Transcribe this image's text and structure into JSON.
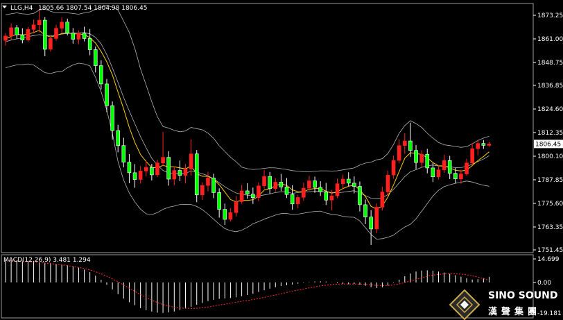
{
  "header": {
    "symbol": "LLG,H4",
    "ohlc": "1805.66 1807.54 1804.98 1806.45"
  },
  "macd": {
    "label": "MACD(12,26,9) 3.481 1.294",
    "ticks": [
      "14.699",
      "0.00",
      "-19.181"
    ]
  },
  "logo": {
    "brand": "SINO SOUND",
    "brand_cn": "漢聲集團"
  },
  "colors": {
    "up": "#ff2020",
    "down": "#ffffff",
    "up_body": "#ff2020",
    "down_body": "#00ff00",
    "band": "#b4b4b4",
    "ma": "#ffd000",
    "signal": "#ff3030",
    "hist": "#ffffff"
  },
  "chart_data": [
    {
      "type": "candlestick",
      "title": "LLG,H4",
      "yticks": [
        "1873.25",
        "1861.00",
        "1848.75",
        "1836.85",
        "1824.60",
        "1812.35",
        "1800.10",
        "1787.85",
        "1775.60",
        "1763.35",
        "1751.45"
      ],
      "ylim": [
        1751.45,
        1873.25
      ],
      "current_price": "1806.45",
      "candles": [
        [
          1860.2,
          1864.0,
          1857.5,
          1862.5
        ],
        [
          1862.5,
          1869.0,
          1860.5,
          1866.8
        ],
        [
          1866.8,
          1868.2,
          1861.0,
          1863.1
        ],
        [
          1863.1,
          1866.5,
          1858.7,
          1860.4
        ],
        [
          1860.4,
          1867.2,
          1859.5,
          1865.9
        ],
        [
          1865.9,
          1871.0,
          1863.8,
          1868.3
        ],
        [
          1868.3,
          1876.0,
          1864.4,
          1870.7
        ],
        [
          1870.7,
          1872.3,
          1852.0,
          1855.6
        ],
        [
          1855.6,
          1862.8,
          1854.4,
          1861.2
        ],
        [
          1861.2,
          1868.4,
          1860.0,
          1866.5
        ],
        [
          1866.5,
          1872.1,
          1864.1,
          1869.7
        ],
        [
          1869.7,
          1871.5,
          1862.8,
          1864.0
        ],
        [
          1864.0,
          1866.6,
          1858.5,
          1860.8
        ],
        [
          1860.8,
          1865.4,
          1858.2,
          1863.9
        ],
        [
          1863.9,
          1867.3,
          1859.7,
          1861.2
        ],
        [
          1861.2,
          1866.1,
          1852.5,
          1855.4
        ],
        [
          1855.4,
          1857.0,
          1843.6,
          1847.1
        ],
        [
          1847.1,
          1849.9,
          1834.8,
          1837.6
        ],
        [
          1837.6,
          1840.2,
          1822.9,
          1826.3
        ],
        [
          1826.3,
          1828.5,
          1808.7,
          1813.4
        ],
        [
          1813.4,
          1816.4,
          1802.1,
          1805.6
        ],
        [
          1805.6,
          1809.7,
          1794.3,
          1797.0
        ],
        [
          1797.0,
          1801.2,
          1786.1,
          1791.5
        ],
        [
          1791.5,
          1796.0,
          1783.7,
          1788.0
        ],
        [
          1788.0,
          1795.0,
          1785.8,
          1792.4
        ],
        [
          1792.4,
          1797.7,
          1789.6,
          1794.3
        ],
        [
          1794.3,
          1796.1,
          1787.5,
          1790.4
        ],
        [
          1790.4,
          1798.3,
          1789.3,
          1796.6
        ],
        [
          1796.6,
          1812.7,
          1795.0,
          1799.5
        ],
        [
          1799.5,
          1802.7,
          1784.8,
          1788.2
        ],
        [
          1788.2,
          1794.7,
          1785.0,
          1792.7
        ],
        [
          1792.7,
          1797.8,
          1787.1,
          1790.1
        ],
        [
          1790.1,
          1796.0,
          1785.9,
          1793.5
        ],
        [
          1793.5,
          1808.8,
          1790.0,
          1801.3
        ],
        [
          1801.3,
          1803.3,
          1776.2,
          1780.0
        ],
        [
          1780.0,
          1786.5,
          1777.4,
          1784.9
        ],
        [
          1784.9,
          1792.0,
          1781.9,
          1788.8
        ],
        [
          1788.8,
          1791.0,
          1778.3,
          1781.2
        ],
        [
          1781.2,
          1783.4,
          1768.2,
          1772.5
        ],
        [
          1772.5,
          1775.5,
          1764.4,
          1767.3
        ],
        [
          1767.3,
          1773.2,
          1766.2,
          1770.8
        ],
        [
          1770.8,
          1779.5,
          1768.8,
          1776.5
        ],
        [
          1776.5,
          1785.2,
          1775.4,
          1782.1
        ],
        [
          1782.1,
          1786.1,
          1778.0,
          1780.4
        ],
        [
          1780.4,
          1783.8,
          1775.3,
          1778.6
        ],
        [
          1778.6,
          1786.6,
          1776.7,
          1784.7
        ],
        [
          1784.7,
          1793.0,
          1783.3,
          1789.6
        ],
        [
          1789.6,
          1791.9,
          1780.4,
          1783.3
        ],
        [
          1783.3,
          1788.7,
          1781.7,
          1786.6
        ],
        [
          1786.6,
          1790.9,
          1782.0,
          1784.1
        ],
        [
          1784.1,
          1788.8,
          1778.4,
          1780.2
        ],
        [
          1780.2,
          1785.0,
          1772.3,
          1775.3
        ],
        [
          1775.3,
          1780.0,
          1773.1,
          1778.7
        ],
        [
          1778.7,
          1786.4,
          1777.0,
          1783.5
        ],
        [
          1783.5,
          1789.9,
          1782.2,
          1787.3
        ],
        [
          1787.3,
          1789.5,
          1781.1,
          1783.9
        ],
        [
          1783.9,
          1787.1,
          1779.5,
          1781.6
        ],
        [
          1781.6,
          1786.2,
          1774.7,
          1777.3
        ],
        [
          1777.3,
          1782.6,
          1772.0,
          1779.5
        ],
        [
          1779.5,
          1788.5,
          1778.3,
          1785.8
        ],
        [
          1785.8,
          1790.5,
          1783.3,
          1788.2
        ],
        [
          1788.2,
          1791.7,
          1784.4,
          1786.1
        ],
        [
          1786.1,
          1789.6,
          1780.8,
          1784.4
        ],
        [
          1784.4,
          1787.0,
          1771.4,
          1774.9
        ],
        [
          1774.9,
          1777.6,
          1764.8,
          1768.5
        ],
        [
          1768.5,
          1772.0,
          1754.0,
          1762.3
        ],
        [
          1762.3,
          1775.6,
          1760.1,
          1773.6
        ],
        [
          1773.6,
          1784.2,
          1771.9,
          1781.5
        ],
        [
          1781.5,
          1792.6,
          1779.5,
          1790.3
        ],
        [
          1790.3,
          1800.4,
          1788.4,
          1797.9
        ],
        [
          1797.9,
          1808.7,
          1796.4,
          1805.6
        ],
        [
          1805.6,
          1812.1,
          1801.3,
          1808.0
        ],
        [
          1808.0,
          1817.5,
          1799.7,
          1803.1
        ],
        [
          1803.1,
          1805.9,
          1793.4,
          1796.8
        ],
        [
          1796.8,
          1803.2,
          1794.2,
          1801.1
        ],
        [
          1801.1,
          1803.9,
          1791.2,
          1794.0
        ],
        [
          1794.0,
          1796.5,
          1786.7,
          1789.4
        ],
        [
          1789.4,
          1795.4,
          1788.0,
          1793.0
        ],
        [
          1793.0,
          1800.9,
          1791.5,
          1797.8
        ],
        [
          1797.8,
          1800.3,
          1788.2,
          1791.2
        ],
        [
          1791.2,
          1794.0,
          1786.0,
          1788.3
        ],
        [
          1788.3,
          1793.1,
          1785.8,
          1790.9
        ],
        [
          1790.9,
          1798.8,
          1789.9,
          1796.6
        ],
        [
          1796.6,
          1806.9,
          1795.3,
          1804.0
        ],
        [
          1804.0,
          1808.5,
          1800.4,
          1806.7
        ],
        [
          1806.7,
          1808.5,
          1803.9,
          1805.7
        ],
        [
          1805.7,
          1807.54,
          1804.98,
          1806.45
        ]
      ],
      "bollinger_upper": [
        1873.5,
        1874.0,
        1874.5,
        1874.0,
        1873.8,
        1874.2,
        1876.0,
        1876.5,
        1875.3,
        1874.5,
        1874.5,
        1874.5,
        1874.2,
        1873.8,
        1874.5,
        1875.0,
        1876.3,
        1877.5,
        1878.4,
        1877.5,
        1875.9,
        1870.2,
        1864.4,
        1856.0,
        1845.5,
        1837.0,
        1828.3,
        1820.6,
        1815.5,
        1814.7,
        1813.5,
        1812.8,
        1813.2,
        1815.0,
        1814.4,
        1813.8,
        1812.1,
        1809.4,
        1805.5,
        1802.6,
        1799.6,
        1797.2,
        1794.4,
        1793.6,
        1793.2,
        1793.4,
        1793.8,
        1794.1,
        1794.0,
        1793.6,
        1793.2,
        1792.6,
        1792.3,
        1792.1,
        1792.0,
        1792.3,
        1792.5,
        1792.5,
        1792.4,
        1792.5,
        1793.0,
        1793.5,
        1794.0,
        1795.5,
        1796.5,
        1797.0,
        1798.2,
        1798.8,
        1801.5,
        1806.2,
        1812.0,
        1816.0,
        1818.5,
        1817.0,
        1815.0,
        1812.0,
        1809.5,
        1807.2,
        1806.0,
        1805.6,
        1805.1,
        1804.7,
        1805.0,
        1806.5,
        1808.2,
        1809.5,
        1810.4
      ],
      "bollinger_lower": [
        1846.0,
        1846.8,
        1847.5,
        1847.6,
        1848.0,
        1847.4,
        1845.4,
        1843.5,
        1843.0,
        1843.8,
        1844.0,
        1846.0,
        1847.5,
        1848.4,
        1848.0,
        1847.0,
        1841.0,
        1833.5,
        1824.0,
        1812.0,
        1797.3,
        1787.7,
        1781.0,
        1776.3,
        1772.6,
        1770.2,
        1769.8,
        1770.8,
        1772.5,
        1773.6,
        1774.2,
        1775.0,
        1775.1,
        1775.0,
        1774.0,
        1772.4,
        1770.0,
        1767.4,
        1764.8,
        1762.5,
        1761.4,
        1760.9,
        1761.7,
        1763.1,
        1765.0,
        1766.1,
        1767.4,
        1768.5,
        1769.5,
        1770.3,
        1770.4,
        1769.8,
        1770.0,
        1770.5,
        1771.0,
        1771.4,
        1771.6,
        1770.6,
        1769.9,
        1769.6,
        1768.9,
        1768.5,
        1768.4,
        1766.5,
        1763.0,
        1759.5,
        1757.0,
        1757.3,
        1758.0,
        1759.1,
        1761.4,
        1763.3,
        1764.8,
        1767.6,
        1771.5,
        1775.5,
        1779.4,
        1782.4,
        1784.3,
        1785.2,
        1786.0,
        1786.6,
        1787.2,
        1786.7,
        1785.8,
        1785.0,
        1784.5
      ],
      "bollinger_mid": [
        1859.5,
        1860.4,
        1861.0,
        1861.5,
        1862.2,
        1862.7,
        1863.2,
        1862.8,
        1862.6,
        1862.9,
        1863.5,
        1863.8,
        1864.0,
        1864.1,
        1864.3,
        1863.6,
        1861.8,
        1858.4,
        1852.8,
        1846.0,
        1838.4,
        1830.6,
        1823.6,
        1816.9,
        1810.3,
        1804.4,
        1799.0,
        1795.4,
        1792.7,
        1791.4,
        1791.3,
        1791.0,
        1791.2,
        1792.4,
        1791.8,
        1791.0,
        1789.9,
        1788.4,
        1786.3,
        1784.2,
        1782.5,
        1781.0,
        1780.3,
        1779.9,
        1779.5,
        1779.5,
        1780.0,
        1780.5,
        1781.2,
        1781.6,
        1781.6,
        1780.8,
        1781.2,
        1781.5,
        1781.7,
        1781.9,
        1781.8,
        1781.6,
        1781.2,
        1781.0,
        1781.4,
        1781.8,
        1782.2,
        1781.0,
        1779.6,
        1778.3,
        1778.0,
        1778.5,
        1780.2,
        1782.9,
        1786.2,
        1789.5,
        1792.0,
        1793.1,
        1794.3,
        1795.1,
        1795.5,
        1795.0,
        1794.8,
        1794.7,
        1794.1,
        1794.2,
        1794.7,
        1796.0,
        1797.3,
        1798.6,
        1800.3
      ],
      "moving_average": [
        1861.0,
        1862.3,
        1863.4,
        1863.0,
        1863.4,
        1864.3,
        1865.4,
        1862.9,
        1862.0,
        1862.7,
        1863.8,
        1864.1,
        1863.6,
        1863.6,
        1863.2,
        1861.7,
        1858.8,
        1854.4,
        1849.1,
        1842.3,
        1833.4,
        1824.7,
        1815.1,
        1807.2,
        1801.0,
        1797.3,
        1794.2,
        1794.1,
        1795.3,
        1794.6,
        1794.6,
        1794.0,
        1793.5,
        1795.0,
        1791.0,
        1789.7,
        1789.6,
        1788.2,
        1785.3,
        1781.5,
        1777.6,
        1776.4,
        1777.2,
        1777.1,
        1777.5,
        1779.3,
        1782.5,
        1783.3,
        1784.7,
        1785.8,
        1784.9,
        1782.6,
        1781.7,
        1781.6,
        1782.9,
        1783.3,
        1783.3,
        1781.9,
        1780.9,
        1781.6,
        1783.3,
        1784.5,
        1785.1,
        1782.6,
        1779.2,
        1774.1,
        1772.5,
        1774.3,
        1778.9,
        1785.2,
        1792.1,
        1799.0,
        1801.9,
        1801.5,
        1801.0,
        1799.3,
        1796.8,
        1795.1,
        1795.1,
        1794.0,
        1792.8,
        1792.4,
        1792.9,
        1795.2,
        1797.8,
        1799.9,
        1802.4
      ]
    },
    {
      "type": "bar",
      "title": "MACD(12,26,9) 3.481 1.294",
      "ylim": [
        -19.181,
        14.699
      ],
      "histogram": [
        14.0,
        14.2,
        13.8,
        13.6,
        13.5,
        13.1,
        12.8,
        12.4,
        12.2,
        11.7,
        11.2,
        10.8,
        10.1,
        9.2,
        8.0,
        6.4,
        4.2,
        1.6,
        -1.5,
        -4.4,
        -7.4,
        -10.1,
        -12.4,
        -14.3,
        -16.1,
        -17.4,
        -18.2,
        -18.9,
        -19.1,
        -18.8,
        -18.2,
        -17.3,
        -16.4,
        -15.2,
        -14.0,
        -12.9,
        -11.7,
        -10.9,
        -10.3,
        -10.0,
        -9.8,
        -9.3,
        -8.6,
        -7.9,
        -7.1,
        -6.0,
        -4.9,
        -3.9,
        -3.0,
        -2.3,
        -1.8,
        -1.3,
        -0.8,
        -0.3,
        0.2,
        0.6,
        0.7,
        0.5,
        0.1,
        -0.5,
        -0.9,
        -1.1,
        -1.0,
        -1.4,
        -2.1,
        -3.0,
        -3.5,
        -3.1,
        -2.0,
        -0.3,
        1.7,
        3.9,
        5.6,
        6.8,
        7.4,
        7.6,
        7.3,
        6.8,
        6.2,
        5.4,
        4.5,
        3.6,
        2.6,
        1.8,
        2.0,
        2.7,
        3.481
      ],
      "signal": [
        13.7,
        13.6,
        13.5,
        13.3,
        13.0,
        12.7,
        12.4,
        12.1,
        11.8,
        11.4,
        11.0,
        10.5,
        10.0,
        9.4,
        8.7,
        7.8,
        6.7,
        5.4,
        3.9,
        2.2,
        0.4,
        -1.6,
        -3.6,
        -5.6,
        -7.6,
        -9.4,
        -11.1,
        -12.6,
        -13.9,
        -14.8,
        -15.5,
        -16.0,
        -16.2,
        -16.3,
        -16.2,
        -15.9,
        -15.4,
        -14.8,
        -14.2,
        -13.6,
        -13.0,
        -12.4,
        -11.8,
        -11.3,
        -10.7,
        -10.1,
        -9.4,
        -8.6,
        -7.9,
        -7.1,
        -6.3,
        -5.5,
        -4.8,
        -4.1,
        -3.4,
        -2.8,
        -2.2,
        -1.7,
        -1.3,
        -1.1,
        -1.0,
        -1.0,
        -1.0,
        -1.1,
        -1.3,
        -1.5,
        -1.8,
        -2.0,
        -1.9,
        -1.6,
        -1.0,
        -0.1,
        0.9,
        1.9,
        2.9,
        3.8,
        4.5,
        5.0,
        5.3,
        5.5,
        5.4,
        5.2,
        4.7,
        4.1,
        3.3,
        2.3,
        1.294
      ]
    }
  ]
}
